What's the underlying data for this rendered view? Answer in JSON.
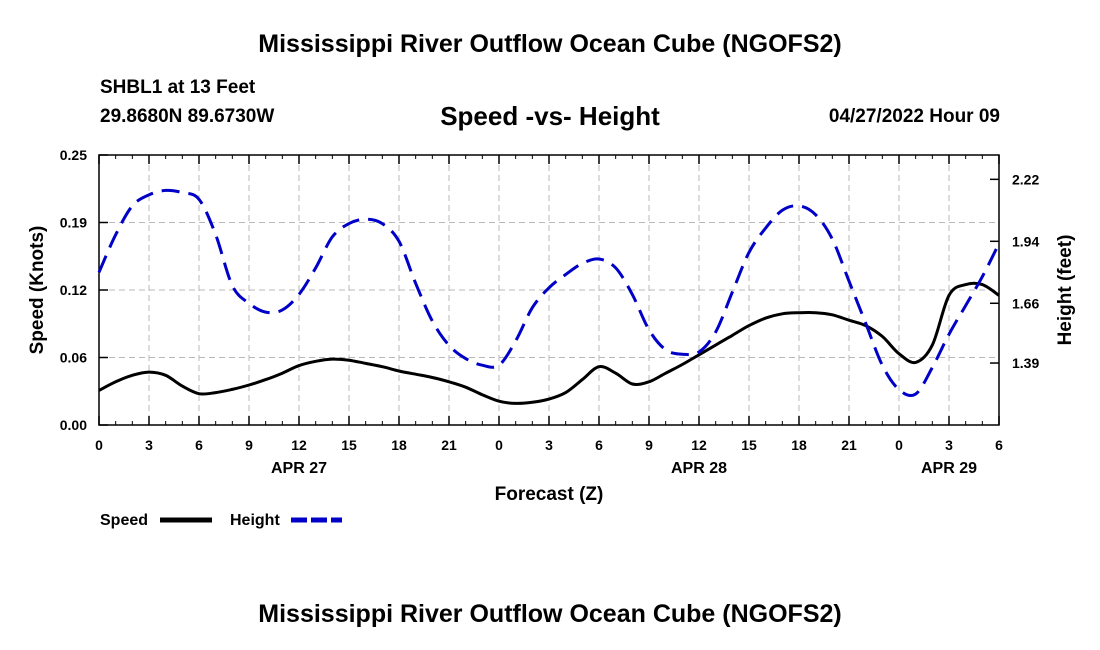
{
  "header": {
    "title": "Mississippi River Outflow Ocean Cube (NGOFS2)",
    "station": "SHBL1 at 13 Feet",
    "coordinates": "29.8680N  89.6730W",
    "subtitle": "Speed -vs- Height",
    "datetime": "04/27/2022 Hour 09"
  },
  "footer": {
    "title": "Mississippi River Outflow Ocean Cube (NGOFS2)"
  },
  "chart_data": {
    "type": "line",
    "xlabel": "Forecast (Z)",
    "ylabel_left": "Speed (Knots)",
    "ylabel_right": "Height (feet)",
    "x_range": [
      0,
      54
    ],
    "x_ticks": [
      0,
      3,
      6,
      9,
      12,
      15,
      18,
      21,
      24,
      27,
      30,
      33,
      36,
      39,
      42,
      45,
      48,
      51,
      54
    ],
    "x_tick_labels": [
      "0",
      "3",
      "6",
      "9",
      "12",
      "15",
      "18",
      "21",
      "0",
      "3",
      "6",
      "9",
      "12",
      "15",
      "18",
      "21",
      "0",
      "3",
      "6"
    ],
    "date_labels": [
      {
        "x": 12,
        "label": "APR 27"
      },
      {
        "x": 36,
        "label": "APR 28"
      },
      {
        "x": 51,
        "label": "APR 29"
      }
    ],
    "y_left_range": [
      0,
      0.25
    ],
    "y_left_ticks": [
      0,
      0.0625,
      0.125,
      0.1875,
      0.25
    ],
    "y_left_tick_labels": [
      "0.00",
      "0.06",
      "0.12",
      "0.19",
      "0.25"
    ],
    "y_right_range": [
      1.11,
      2.33
    ],
    "y_right_ticks": [
      1.39,
      1.66,
      1.94,
      2.22
    ],
    "y_right_tick_labels": [
      "1.39",
      "1.66",
      "1.94",
      "2.22"
    ],
    "grid": true,
    "legend_position": "bottom-left",
    "series": [
      {
        "name": "Speed",
        "axis": "left",
        "color": "#000000",
        "style": "solid",
        "x": [
          0,
          1,
          2,
          3,
          4,
          5,
          6,
          7,
          8,
          9,
          10,
          11,
          12,
          13,
          14,
          15,
          16,
          17,
          18,
          19,
          20,
          21,
          22,
          23,
          24,
          25,
          26,
          27,
          28,
          29,
          30,
          31,
          32,
          33,
          34,
          35,
          36,
          37,
          38,
          39,
          40,
          41,
          42,
          43,
          44,
          45,
          46,
          47,
          48,
          49,
          50,
          51,
          52,
          53,
          54
        ],
        "values": [
          0.032,
          0.04,
          0.046,
          0.049,
          0.046,
          0.036,
          0.029,
          0.03,
          0.033,
          0.037,
          0.042,
          0.048,
          0.055,
          0.059,
          0.061,
          0.06,
          0.057,
          0.054,
          0.05,
          0.047,
          0.044,
          0.04,
          0.035,
          0.028,
          0.022,
          0.02,
          0.021,
          0.024,
          0.03,
          0.042,
          0.054,
          0.048,
          0.038,
          0.04,
          0.048,
          0.056,
          0.065,
          0.074,
          0.083,
          0.092,
          0.099,
          0.103,
          0.104,
          0.104,
          0.102,
          0.097,
          0.092,
          0.082,
          0.066,
          0.058,
          0.074,
          0.12,
          0.13,
          0.13,
          0.12
        ]
      },
      {
        "name": "Height",
        "axis": "right",
        "color": "#0000c8",
        "style": "dashed",
        "x": [
          0,
          1,
          2,
          3,
          4,
          5,
          6,
          7,
          8,
          9,
          10,
          11,
          12,
          13,
          14,
          15,
          16,
          17,
          18,
          19,
          20,
          21,
          22,
          23,
          24,
          25,
          26,
          27,
          28,
          29,
          30,
          31,
          32,
          33,
          34,
          35,
          36,
          37,
          38,
          39,
          40,
          41,
          42,
          43,
          44,
          45,
          46,
          47,
          48,
          49,
          50,
          51,
          52,
          53,
          54
        ],
        "values": [
          1.8,
          1.97,
          2.1,
          2.15,
          2.17,
          2.16,
          2.13,
          1.97,
          1.74,
          1.66,
          1.62,
          1.63,
          1.7,
          1.82,
          1.96,
          2.02,
          2.04,
          2.02,
          1.94,
          1.75,
          1.58,
          1.47,
          1.41,
          1.38,
          1.38,
          1.49,
          1.64,
          1.73,
          1.79,
          1.84,
          1.86,
          1.82,
          1.7,
          1.54,
          1.45,
          1.43,
          1.44,
          1.53,
          1.71,
          1.89,
          2.0,
          2.08,
          2.1,
          2.06,
          1.95,
          1.76,
          1.57,
          1.38,
          1.27,
          1.25,
          1.37,
          1.52,
          1.65,
          1.78,
          1.93
        ]
      }
    ]
  }
}
